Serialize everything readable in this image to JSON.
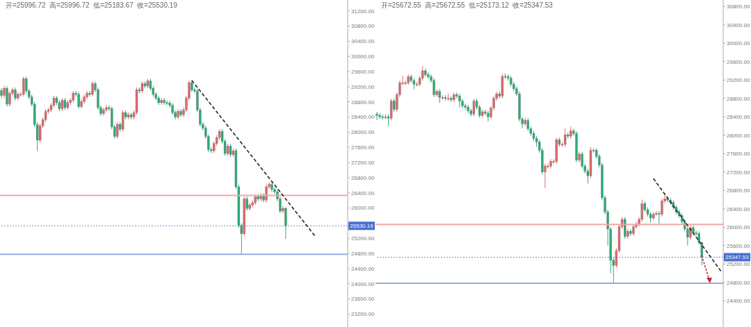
{
  "chart_data": [
    {
      "type": "candlestick",
      "title": "开=25996.72  高=25996.72  低=25183.67  收=25530.19",
      "colors": [
        "#2eab77",
        "#e0696a",
        "#2eab77",
        "#e0696a",
        "#e0696a",
        "#2eab77",
        "#e0696a",
        "#e0696a",
        "#e0696a",
        "#2eab77",
        "#2eab77",
        "#2eab77",
        "#2eab77",
        "#2eab77",
        "#e0696a",
        "#e0696a",
        "#e0696a",
        "#e0696a",
        "#e0696a",
        "#e0696a",
        "#2eab77",
        "#2eab77",
        "#e0696a",
        "#2eab77",
        "#e0696a",
        "#e0696a",
        "#e0696a",
        "#2eab77",
        "#2eab77",
        "#e0696a",
        "#e0696a",
        "#e0696a",
        "#2eab77",
        "#e0696a",
        "#2eab77",
        "#2eab77",
        "#2eab77",
        "#e0696a",
        "#e0696a",
        "#2eab77",
        "#2eab77",
        "#2eab77",
        "#e0696a",
        "#2eab77",
        "#e0696a",
        "#2eab77",
        "#e0696a",
        "#2eab77",
        "#e0696a",
        "#e0696a",
        "#2eab77",
        "#e0696a",
        "#2eab77",
        "#e0696a",
        "#2eab77",
        "#2eab77",
        "#2eab77",
        "#2eab77",
        "#e0696a",
        "#2eab77",
        "#2eab77",
        "#2eab77",
        "#2eab77",
        "#2eab77",
        "#e0696a",
        "#2eab77",
        "#e0696a",
        "#e0696a",
        "#e0696a",
        "#2eab77",
        "#2eab77",
        "#2eab77",
        "#2eab77",
        "#2eab77",
        "#2eab77",
        "#2eab77",
        "#2eab77",
        "#e0696a",
        "#e0696a",
        "#e0696a",
        "#2eab77",
        "#2eab77",
        "#e0696a",
        "#2eab77",
        "#e0696a",
        "#2eab77",
        "#2eab77",
        "#2eab77",
        "#e0696a",
        "#2eab77",
        "#e0696a",
        "#e0696a",
        "#e0696a",
        "#2eab77",
        "#e0696a",
        "#2eab77",
        "#e0696a",
        "#e0696a",
        "#2eab77",
        "#2eab77",
        "#2eab77",
        "#2eab77",
        "#e0696a",
        "#2eab77",
        null,
        null,
        null,
        null,
        null,
        null,
        null,
        null,
        null,
        null,
        null,
        null,
        null,
        null,
        null,
        null,
        null,
        null,
        null,
        null,
        null,
        null
      ],
      "tick_labels": "y",
      "legend": false,
      "grid": false,
      "categories": [
        null,
        null,
        null,
        null,
        null,
        null,
        null,
        null,
        null,
        null,
        null,
        null,
        null,
        null,
        null,
        null,
        null,
        null,
        null,
        null,
        null,
        null,
        null,
        null,
        null,
        null,
        null,
        null,
        null,
        null,
        null,
        null,
        null,
        null,
        null,
        null,
        null,
        null,
        null,
        null,
        null,
        null,
        null,
        null,
        null,
        null,
        null,
        null,
        null,
        null,
        null,
        null,
        null,
        null,
        null,
        null,
        null,
        null,
        null,
        null,
        null,
        null,
        null,
        null,
        null,
        null,
        null,
        null,
        null,
        null,
        null,
        null,
        null,
        null,
        null,
        null,
        null,
        null,
        null,
        null,
        null,
        null,
        null,
        null,
        null,
        null,
        null,
        null,
        null,
        null,
        null,
        null,
        null,
        null,
        null,
        null,
        null,
        null,
        null,
        null,
        null,
        null,
        null,
        null,
        null,
        null,
        null,
        null,
        null,
        null,
        null,
        null,
        null,
        null,
        null,
        null,
        null,
        null,
        null,
        null,
        null,
        null,
        null,
        null,
        null,
        null
      ],
      "ohlc": [
        [
          29100,
          29160,
          28910,
          28970
        ],
        [
          28970,
          29220,
          28910,
          29160
        ],
        [
          29160,
          29220,
          28680,
          28740
        ],
        [
          28740,
          29090,
          28680,
          29030
        ],
        [
          29030,
          29180,
          28970,
          29120
        ],
        [
          29120,
          29180,
          28840,
          28900
        ],
        [
          28900,
          29060,
          28840,
          29000
        ],
        [
          29000,
          29060,
          28940,
          29000
        ],
        [
          29000,
          29470,
          28940,
          29410
        ],
        [
          29410,
          29470,
          29030,
          29090
        ],
        [
          29090,
          29150,
          28870,
          28930
        ],
        [
          28930,
          28990,
          28680,
          28740
        ],
        [
          28740,
          28800,
          28140,
          28200
        ],
        [
          28200,
          28260,
          27500,
          27790
        ],
        [
          27790,
          28230,
          27730,
          28170
        ],
        [
          28170,
          28390,
          28110,
          28330
        ],
        [
          28330,
          28610,
          28270,
          28550
        ],
        [
          28550,
          28650,
          28490,
          28590
        ],
        [
          28590,
          28770,
          28530,
          28710
        ],
        [
          28710,
          28960,
          28650,
          28900
        ],
        [
          28900,
          28960,
          28720,
          28780
        ],
        [
          28780,
          28840,
          28560,
          28620
        ],
        [
          28620,
          28900,
          28560,
          28840
        ],
        [
          28840,
          28900,
          28590,
          28650
        ],
        [
          28650,
          28840,
          28590,
          28780
        ],
        [
          28780,
          28900,
          28720,
          28840
        ],
        [
          28840,
          29090,
          28780,
          29030
        ],
        [
          29030,
          29090,
          28940,
          29000
        ],
        [
          29000,
          29060,
          28620,
          28680
        ],
        [
          28680,
          28870,
          28620,
          28810
        ],
        [
          28810,
          28990,
          28750,
          28930
        ],
        [
          28930,
          29090,
          28870,
          29030
        ],
        [
          29030,
          29090,
          28940,
          29000
        ],
        [
          29000,
          29340,
          28940,
          29280
        ],
        [
          29280,
          29340,
          29060,
          29120
        ],
        [
          29120,
          29180,
          28590,
          28650
        ],
        [
          28650,
          28710,
          28430,
          28490
        ],
        [
          28490,
          28650,
          28430,
          28590
        ],
        [
          28590,
          28710,
          28530,
          28650
        ],
        [
          28650,
          28710,
          28560,
          28620
        ],
        [
          28620,
          28680,
          28080,
          28140
        ],
        [
          28140,
          28200,
          27830,
          27890
        ],
        [
          27890,
          28270,
          27830,
          28210
        ],
        [
          28210,
          28270,
          28020,
          28080
        ],
        [
          28080,
          28580,
          28020,
          28520
        ],
        [
          28520,
          28580,
          28340,
          28400
        ],
        [
          28400,
          28520,
          28340,
          28460
        ],
        [
          28460,
          28520,
          28340,
          28400
        ],
        [
          28400,
          28580,
          28340,
          28520
        ],
        [
          28520,
          29180,
          28460,
          29120
        ],
        [
          29120,
          29180,
          29030,
          29090
        ],
        [
          29090,
          29340,
          29030,
          29280
        ],
        [
          29280,
          29340,
          29160,
          29220
        ],
        [
          29220,
          29410,
          29160,
          29350
        ],
        [
          29350,
          29410,
          29100,
          29160
        ],
        [
          29160,
          29220,
          28940,
          29000
        ],
        [
          29000,
          29060,
          28840,
          28900
        ],
        [
          28900,
          28960,
          28720,
          28780
        ],
        [
          28780,
          28900,
          28720,
          28840
        ],
        [
          28840,
          28900,
          28720,
          28780
        ],
        [
          28780,
          28840,
          28710,
          28770
        ],
        [
          28770,
          28830,
          28650,
          28710
        ],
        [
          28710,
          28770,
          28460,
          28520
        ],
        [
          28520,
          28580,
          28340,
          28400
        ],
        [
          28400,
          28610,
          28340,
          28550
        ],
        [
          28550,
          28610,
          28400,
          28460
        ],
        [
          28460,
          28650,
          28400,
          28590
        ],
        [
          28590,
          28960,
          28530,
          28900
        ],
        [
          28900,
          29370,
          28840,
          29310
        ],
        [
          29310,
          29370,
          29060,
          29120
        ],
        [
          29120,
          29180,
          29030,
          29090
        ],
        [
          29090,
          29150,
          28530,
          28590
        ],
        [
          28590,
          28650,
          28150,
          28210
        ],
        [
          28210,
          28270,
          28050,
          28110
        ],
        [
          28110,
          28170,
          27830,
          27890
        ],
        [
          27890,
          27950,
          27480,
          27540
        ],
        [
          27540,
          27600,
          27450,
          27510
        ],
        [
          27510,
          27760,
          27450,
          27700
        ],
        [
          27700,
          27920,
          27640,
          27860
        ],
        [
          27860,
          28080,
          27800,
          28020
        ],
        [
          28020,
          28080,
          27700,
          27760
        ],
        [
          27760,
          27820,
          27380,
          27440
        ],
        [
          27440,
          27690,
          27380,
          27630
        ],
        [
          27630,
          27690,
          27350,
          27410
        ],
        [
          27410,
          27570,
          27350,
          27510
        ],
        [
          27510,
          27570,
          26500,
          26560
        ],
        [
          26560,
          26620,
          25480,
          25540
        ],
        [
          25540,
          25600,
          24780,
          25320
        ],
        [
          25320,
          26300,
          25260,
          26240
        ],
        [
          26240,
          26300,
          25930,
          25990
        ],
        [
          25990,
          26140,
          25930,
          26080
        ],
        [
          26080,
          26200,
          26020,
          26140
        ],
        [
          26140,
          26360,
          26080,
          26300
        ],
        [
          26300,
          26360,
          26180,
          26240
        ],
        [
          26240,
          26390,
          26180,
          26330
        ],
        [
          26330,
          26390,
          26150,
          26210
        ],
        [
          26210,
          26620,
          26150,
          26560
        ],
        [
          26560,
          26680,
          26500,
          26620
        ],
        [
          26620,
          26680,
          26430,
          26490
        ],
        [
          26490,
          26550,
          26370,
          26430
        ],
        [
          26430,
          26490,
          26180,
          26240
        ],
        [
          26240,
          26300,
          25860,
          25920
        ],
        [
          25920,
          26050,
          25860,
          25990
        ],
        [
          25996.72,
          25996.72,
          25183.67,
          25530.19
        ],
        null,
        null,
        null,
        null,
        null,
        null,
        null,
        null,
        null,
        null,
        null,
        null,
        null,
        null,
        null,
        null,
        null,
        null,
        null,
        null,
        null,
        null
      ],
      "series": [
        {
          "type": "line",
          "color": "#222222",
          "line_style": "dashed",
          "values": [
            null,
            null,
            null,
            null,
            null,
            null,
            null,
            null,
            null,
            null,
            null,
            null,
            null,
            null,
            null,
            null,
            null,
            null,
            null,
            null,
            null,
            null,
            null,
            null,
            null,
            null,
            null,
            null,
            null,
            null,
            null,
            null,
            null,
            null,
            null,
            null,
            null,
            null,
            null,
            null,
            null,
            null,
            null,
            null,
            null,
            null,
            null,
            null,
            null,
            null,
            null,
            null,
            null,
            null,
            null,
            null,
            null,
            null,
            null,
            null,
            null,
            null,
            null,
            null,
            null,
            null,
            null,
            null,
            null,
            29370,
            null,
            null,
            null,
            null,
            null,
            null,
            null,
            null,
            null,
            null,
            null,
            null,
            null,
            null,
            null,
            null,
            null,
            null,
            null,
            null,
            null,
            null,
            null,
            null,
            null,
            null,
            null,
            null,
            null,
            null,
            null,
            null,
            null,
            null,
            null,
            null,
            null,
            null,
            null,
            null,
            null,
            null,
            null,
            null,
            25230,
            null,
            null,
            null,
            null,
            null,
            null,
            null,
            null,
            null,
            null,
            null
          ]
        }
      ],
      "ylim": [
        22860,
        31490
      ],
      "yticks": [
        {
          "value": 23200,
          "label": "23200.00"
        },
        {
          "value": 23600,
          "label": "23600.00"
        },
        {
          "value": 24000,
          "label": "24000.00"
        },
        {
          "value": 24400,
          "label": "24400.00"
        },
        {
          "value": 24800,
          "label": "24800.00"
        },
        {
          "value": 25200,
          "label": "25200.00"
        },
        {
          "value": 26000,
          "label": "26000.00"
        },
        {
          "value": 26400,
          "label": "26400.00"
        },
        {
          "value": 26800,
          "label": "26800.00"
        },
        {
          "value": 27200,
          "label": "27200.00"
        },
        {
          "value": 27600,
          "label": "27600.00"
        },
        {
          "value": 28000,
          "label": "28000.00"
        },
        {
          "value": 28400,
          "label": "28400.00"
        },
        {
          "value": 28800,
          "label": "28800.00"
        },
        {
          "value": 29200,
          "label": "29200.00"
        },
        {
          "value": 29600,
          "label": "29600.00"
        },
        {
          "value": 30000,
          "label": "30000.00"
        },
        {
          "value": 30400,
          "label": "30400.00"
        },
        {
          "value": 30800,
          "label": "30800.00"
        },
        {
          "value": 31200,
          "label": "31200.00"
        }
      ],
      "ref_lines": [
        {
          "axis": "y",
          "value": 25530.19,
          "label": "25530.19",
          "color": "#4a6fd1",
          "line_style": "dotted"
        },
        {
          "axis": "y",
          "value": 26330,
          "label": null,
          "color": "#f4a6a6",
          "line_style": "solid"
        },
        {
          "axis": "y",
          "value": 24780,
          "label": null,
          "color": "#8eaee0",
          "line_style": "solid"
        }
      ]
    },
    {
      "type": "candlestick",
      "title": "开=25672.55  高=25672.55  低=25173.12  收=25347.53",
      "colors": [
        "#2eab77",
        "#2eab77",
        "#2eab77",
        "#e0696a",
        "#2eab77",
        "#e0696a",
        "#2eab77",
        "#e0696a",
        "#e0696a",
        "#e0696a",
        "#e0696a",
        "#e0696a",
        "#2eab77",
        "#2eab77",
        "#e0696a",
        "#e0696a",
        "#e0696a",
        "#2eab77",
        "#2eab77",
        "#2eab77",
        "#2eab77",
        "#e0696a",
        "#2eab77",
        "#e0696a",
        "#2eab77",
        "#e0696a",
        "#2eab77",
        "#e0696a",
        "#2eab77",
        "#2eab77",
        "#2eab77",
        "#2eab77",
        "#2eab77",
        "#2eab77",
        "#e0696a",
        "#2eab77",
        "#2eab77",
        "#e0696a",
        "#2eab77",
        "#2eab77",
        "#e0696a",
        "#e0696a",
        "#e0696a",
        "#2eab77",
        "#e0696a",
        "#2eab77",
        "#2eab77",
        "#2eab77",
        "#2eab77",
        "#2eab77",
        "#2eab77",
        "#2eab77",
        "#e0696a",
        "#2eab77",
        "#2eab77",
        "#2eab77",
        "#2eab77",
        "#2eab77",
        "#2eab77",
        "#e0696a",
        "#e0696a",
        "#e0696a",
        "#e0696a",
        "#e0696a",
        "#2eab77",
        "#e0696a",
        "#e0696a",
        "#2eab77",
        "#e0696a",
        "#2eab77",
        "#2eab77",
        "#e0696a",
        "#2eab77",
        "#2eab77",
        "#2eab77",
        "#e0696a",
        "#e0696a",
        "#2eab77",
        "#2eab77",
        "#2eab77",
        "#2eab77",
        "#2eab77",
        "#2eab77",
        "#2eab77",
        "#e0696a",
        "#e0696a",
        "#e0696a",
        "#2eab77",
        "#e0696a",
        "#2eab77",
        "#e0696a",
        "#e0696a",
        "#e0696a",
        "#e0696a",
        "#2eab77",
        "#2eab77",
        "#2eab77",
        "#e0696a",
        "#e0696a",
        "#2eab77",
        "#e0696a",
        "#e0696a",
        "#2eab77",
        "#2eab77",
        "#2eab77",
        "#2eab77",
        "#2eab77",
        "#2eab77",
        "#2eab77",
        "#2eab77",
        "#e0696a",
        "#2eab77",
        "#2eab77",
        "#2eab77",
        "#2eab77",
        null,
        null,
        null,
        null,
        null,
        null,
        null
      ],
      "tick_labels": "y",
      "legend": false,
      "grid": false,
      "categories": [
        null,
        null,
        null,
        null,
        null,
        null,
        null,
        null,
        null,
        null,
        null,
        null,
        null,
        null,
        null,
        null,
        null,
        null,
        null,
        null,
        null,
        null,
        null,
        null,
        null,
        null,
        null,
        null,
        null,
        null,
        null,
        null,
        null,
        null,
        null,
        null,
        null,
        null,
        null,
        null,
        null,
        null,
        null,
        null,
        null,
        null,
        null,
        null,
        null,
        null,
        null,
        null,
        null,
        null,
        null,
        null,
        null,
        null,
        null,
        null,
        null,
        null,
        null,
        null,
        null,
        null,
        null,
        null,
        null,
        null,
        null,
        null,
        null,
        null,
        null,
        null,
        null,
        null,
        null,
        null,
        null,
        null,
        null,
        null,
        null,
        null,
        null,
        null,
        null,
        null,
        null,
        null,
        null,
        null,
        null,
        null,
        null,
        null,
        null,
        null,
        null,
        null,
        null,
        null,
        null,
        null,
        null,
        null,
        null,
        null,
        null,
        null,
        null,
        null,
        null,
        null,
        null,
        null,
        null,
        null,
        null,
        null
      ],
      "ohlc": [
        [
          28460,
          28510,
          28330,
          28430
        ],
        [
          28430,
          28480,
          28350,
          28400
        ],
        [
          28400,
          28450,
          28340,
          28390
        ],
        [
          28390,
          28450,
          28340,
          28400
        ],
        [
          28400,
          28450,
          28200,
          28370
        ],
        [
          28370,
          28790,
          28320,
          28740
        ],
        [
          28740,
          28790,
          28510,
          28560
        ],
        [
          28560,
          28930,
          28510,
          28880
        ],
        [
          28880,
          29190,
          28830,
          29140
        ],
        [
          29140,
          29300,
          29090,
          29140
        ],
        [
          29140,
          29190,
          29090,
          29140
        ],
        [
          29140,
          29320,
          29090,
          29270
        ],
        [
          29270,
          29320,
          29140,
          29190
        ],
        [
          29190,
          29240,
          29000,
          29110
        ],
        [
          29110,
          29160,
          29060,
          29110
        ],
        [
          29110,
          29290,
          29060,
          29240
        ],
        [
          29240,
          29500,
          29190,
          29400
        ],
        [
          29400,
          29450,
          29270,
          29320
        ],
        [
          29320,
          29370,
          29220,
          29270
        ],
        [
          29270,
          29320,
          29140,
          29190
        ],
        [
          29190,
          29240,
          28830,
          28880
        ],
        [
          28880,
          29000,
          28830,
          28950
        ],
        [
          28950,
          29000,
          28700,
          28820
        ],
        [
          28820,
          28870,
          28770,
          28820
        ],
        [
          28820,
          28870,
          28750,
          28800
        ],
        [
          28800,
          28900,
          28750,
          28800
        ],
        [
          28800,
          28850,
          28720,
          28770
        ],
        [
          28770,
          28930,
          28720,
          28880
        ],
        [
          28880,
          28930,
          28800,
          28850
        ],
        [
          28850,
          28900,
          28600,
          28740
        ],
        [
          28740,
          28790,
          28590,
          28640
        ],
        [
          28640,
          28690,
          28560,
          28610
        ],
        [
          28610,
          28660,
          28480,
          28530
        ],
        [
          28530,
          28580,
          28410,
          28460
        ],
        [
          28460,
          28790,
          28410,
          28740
        ],
        [
          28740,
          28790,
          28560,
          28610
        ],
        [
          28610,
          28660,
          28380,
          28430
        ],
        [
          28430,
          28560,
          28380,
          28510
        ],
        [
          28510,
          28560,
          28430,
          28480
        ],
        [
          28480,
          28530,
          28300,
          28400
        ],
        [
          28400,
          28640,
          28350,
          28590
        ],
        [
          28590,
          28850,
          28540,
          28800
        ],
        [
          28800,
          28950,
          28750,
          28900
        ],
        [
          28900,
          28950,
          28800,
          28850
        ],
        [
          28850,
          29330,
          28800,
          29280
        ],
        [
          29280,
          29340,
          29220,
          29270
        ],
        [
          29270,
          29320,
          29190,
          29240
        ],
        [
          29240,
          29290,
          29060,
          29110
        ],
        [
          29110,
          29160,
          28960,
          29010
        ],
        [
          29010,
          29060,
          28850,
          28900
        ],
        [
          28900,
          28950,
          28300,
          28350
        ],
        [
          28350,
          28400,
          28150,
          28250
        ],
        [
          28250,
          28370,
          28200,
          28320
        ],
        [
          28320,
          28370,
          28090,
          28140
        ],
        [
          28140,
          28190,
          27990,
          28040
        ],
        [
          28040,
          28090,
          27880,
          27930
        ],
        [
          27930,
          27980,
          27750,
          27850
        ],
        [
          27850,
          27900,
          27620,
          27670
        ],
        [
          27670,
          27720,
          27150,
          27200
        ],
        [
          27200,
          27380,
          26850,
          27330
        ],
        [
          27330,
          27380,
          27280,
          27330
        ],
        [
          27330,
          27480,
          27280,
          27430
        ],
        [
          27430,
          27480,
          27380,
          27430
        ],
        [
          27430,
          27950,
          27380,
          27900
        ],
        [
          27900,
          27950,
          27750,
          27800
        ],
        [
          27800,
          27850,
          27750,
          27800
        ],
        [
          27800,
          28150,
          27750,
          28010
        ],
        [
          28010,
          28060,
          27930,
          27980
        ],
        [
          27980,
          28190,
          27930,
          28090
        ],
        [
          28090,
          28140,
          27990,
          28040
        ],
        [
          28040,
          28090,
          27410,
          27460
        ],
        [
          27460,
          27640,
          27410,
          27590
        ],
        [
          27590,
          27640,
          27280,
          27330
        ],
        [
          27330,
          27380,
          27170,
          27220
        ],
        [
          27220,
          27270,
          26950,
          27120
        ],
        [
          27120,
          27740,
          27070,
          27670
        ],
        [
          27670,
          27720,
          27620,
          27670
        ],
        [
          27670,
          27720,
          27490,
          27540
        ],
        [
          27540,
          27590,
          27300,
          27350
        ],
        [
          27350,
          27400,
          26590,
          26640
        ],
        [
          26640,
          26690,
          26280,
          26330
        ],
        [
          26330,
          26380,
          25600,
          25960
        ],
        [
          25960,
          26010,
          25000,
          25280
        ],
        [
          25280,
          25330,
          24780,
          25170
        ],
        [
          25170,
          25540,
          25120,
          25490
        ],
        [
          25490,
          26060,
          25440,
          26010
        ],
        [
          26010,
          26220,
          25960,
          26170
        ],
        [
          26170,
          26220,
          25750,
          25800
        ],
        [
          25800,
          25960,
          25750,
          25910
        ],
        [
          25910,
          25960,
          25810,
          25860
        ],
        [
          25860,
          26060,
          25810,
          26010
        ],
        [
          26010,
          26120,
          25960,
          26070
        ],
        [
          26070,
          26220,
          26020,
          26170
        ],
        [
          26170,
          26600,
          26120,
          26510
        ],
        [
          26510,
          26560,
          26330,
          26380
        ],
        [
          26380,
          26430,
          26230,
          26280
        ],
        [
          26280,
          26330,
          26100,
          26200
        ],
        [
          26200,
          26330,
          26150,
          26280
        ],
        [
          26280,
          26350,
          26250,
          26300
        ],
        [
          26300,
          26350,
          26080,
          26280
        ],
        [
          26280,
          26620,
          26230,
          26570
        ],
        [
          26570,
          26740,
          26520,
          26620
        ],
        [
          26620,
          26670,
          26540,
          26590
        ],
        [
          26590,
          26640,
          26490,
          26540
        ],
        [
          26540,
          26590,
          26380,
          26430
        ],
        [
          26430,
          26480,
          26280,
          26330
        ],
        [
          26330,
          26380,
          26200,
          26250
        ],
        [
          26250,
          26300,
          26070,
          26120
        ],
        [
          26120,
          26170,
          25910,
          25960
        ],
        [
          25960,
          26010,
          25600,
          25780
        ],
        [
          25780,
          26040,
          25730,
          25990
        ],
        [
          25990,
          26040,
          25830,
          25880
        ],
        [
          25880,
          25930,
          25810,
          25860
        ],
        [
          25860,
          25910,
          25620,
          25670
        ],
        [
          25672.55,
          25672.55,
          25173.12,
          25347.53
        ],
        null,
        null,
        null,
        null,
        null,
        null,
        null
      ],
      "series": [
        {
          "type": "line",
          "color": "#222222",
          "line_style": "dashed",
          "values": [
            null,
            null,
            null,
            null,
            null,
            null,
            null,
            null,
            null,
            null,
            null,
            null,
            null,
            null,
            null,
            null,
            null,
            null,
            null,
            null,
            null,
            null,
            null,
            null,
            null,
            null,
            null,
            null,
            null,
            null,
            null,
            null,
            null,
            null,
            null,
            null,
            null,
            null,
            null,
            null,
            null,
            null,
            null,
            null,
            null,
            null,
            null,
            null,
            null,
            null,
            null,
            null,
            null,
            null,
            null,
            null,
            null,
            null,
            null,
            null,
            null,
            null,
            null,
            null,
            null,
            null,
            null,
            null,
            null,
            null,
            null,
            null,
            null,
            null,
            null,
            null,
            null,
            null,
            null,
            null,
            null,
            null,
            null,
            null,
            null,
            null,
            null,
            null,
            null,
            null,
            null,
            null,
            null,
            null,
            null,
            null,
            null,
            27060,
            null,
            null,
            null,
            null,
            null,
            null,
            null,
            null,
            null,
            null,
            null,
            null,
            null,
            null,
            null,
            null,
            null,
            null,
            null,
            null,
            null,
            null,
            null,
            25020
          ]
        }
      ],
      "ylim": [
        23830,
        30940
      ],
      "yticks": [
        {
          "value": 24400,
          "label": "24400.00"
        },
        {
          "value": 24800,
          "label": "24800.00"
        },
        {
          "value": 25200,
          "label": "25200.00"
        },
        {
          "value": 25600,
          "label": "25600.00"
        },
        {
          "value": 26000,
          "label": "26000.00"
        },
        {
          "value": 26400,
          "label": "26400.00"
        },
        {
          "value": 26800,
          "label": "26800.00"
        },
        {
          "value": 27200,
          "label": "27200.00"
        },
        {
          "value": 27600,
          "label": "27600.00"
        },
        {
          "value": 28000,
          "label": "28000.00"
        },
        {
          "value": 28400,
          "label": "28400.00"
        },
        {
          "value": 28800,
          "label": "28800.00"
        },
        {
          "value": 29200,
          "label": "29200.00"
        },
        {
          "value": 29600,
          "label": "29600.00"
        },
        {
          "value": 30000,
          "label": "30000.00"
        },
        {
          "value": 30400,
          "label": "30400.00"
        },
        {
          "value": 30800,
          "label": "30800.00"
        }
      ],
      "ref_lines": [
        {
          "axis": "y",
          "value": 25347.53,
          "label": "25347.53",
          "color": "#4a6fd1",
          "line_style": "dotted"
        },
        {
          "axis": "y",
          "value": 26060,
          "label": null,
          "color": "#f4a6a6",
          "line_style": "solid"
        },
        {
          "axis": "y",
          "value": 24780,
          "label": null,
          "color": "#8eaee0",
          "line_style": "solid"
        }
      ]
    }
  ]
}
